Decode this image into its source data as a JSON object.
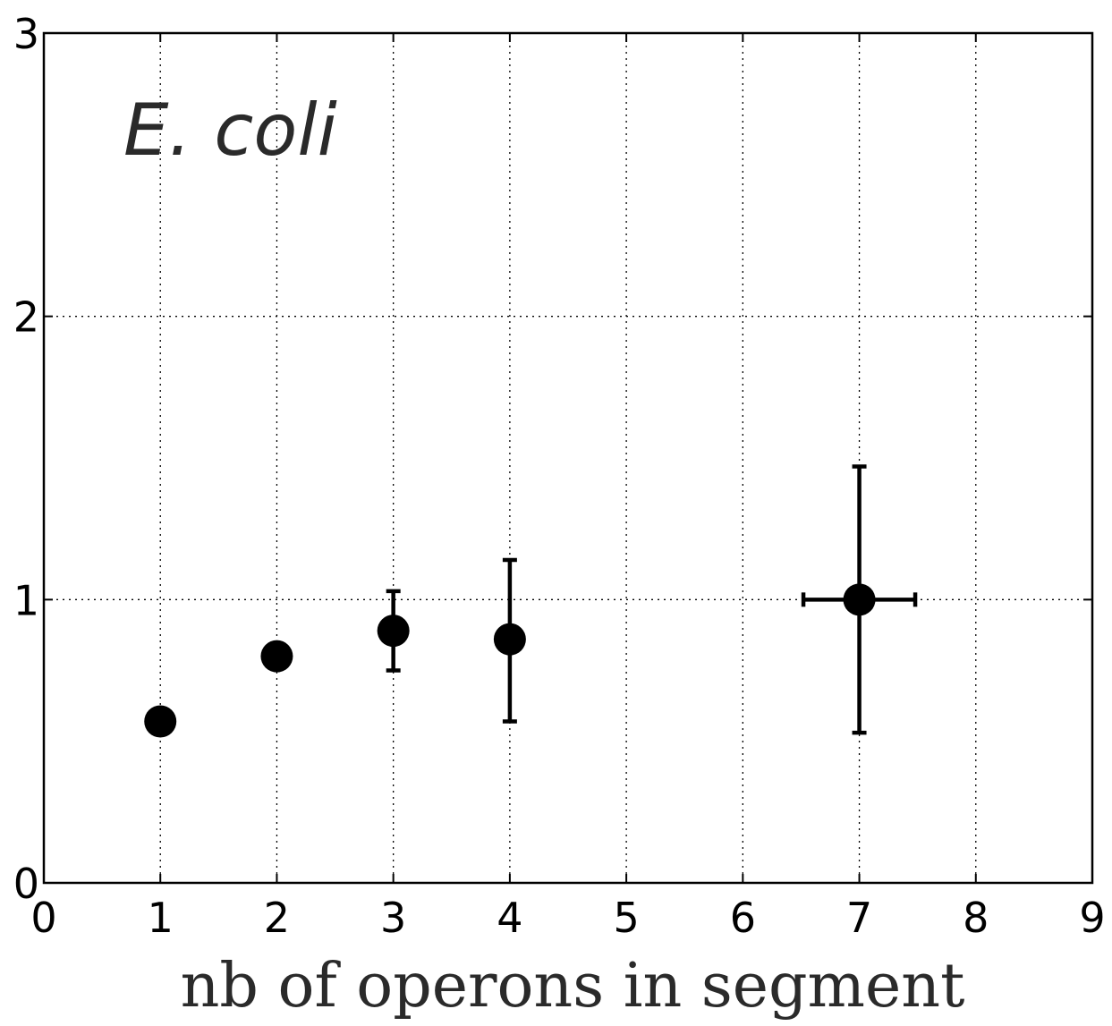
{
  "chart_data": {
    "type": "scatter",
    "title": "",
    "xlabel": "nb of operons in segment",
    "ylabel": "",
    "xlim": [
      0,
      9
    ],
    "ylim": [
      0,
      3
    ],
    "xticks": [
      "0",
      "1",
      "2",
      "3",
      "4",
      "5",
      "6",
      "7",
      "8",
      "9"
    ],
    "yticks": [
      "0",
      "1",
      "2",
      "3"
    ],
    "grid": true,
    "annotation": "E. coli",
    "points": [
      {
        "x": 1,
        "y": 0.57,
        "yerr_low": 0.57,
        "yerr_high": 0.57,
        "xerr": 0
      },
      {
        "x": 2,
        "y": 0.8,
        "yerr_low": 0.76,
        "yerr_high": 0.8,
        "xerr": 0
      },
      {
        "x": 3,
        "y": 0.89,
        "yerr_low": 0.75,
        "yerr_high": 1.03,
        "xerr": 0
      },
      {
        "x": 4,
        "y": 0.86,
        "yerr_low": 0.57,
        "yerr_high": 1.14,
        "xerr": 0
      },
      {
        "x": 7,
        "y": 1.0,
        "yerr_low": 0.53,
        "yerr_high": 1.47,
        "xerr": 0.48
      }
    ],
    "marker_color": "#000000"
  }
}
